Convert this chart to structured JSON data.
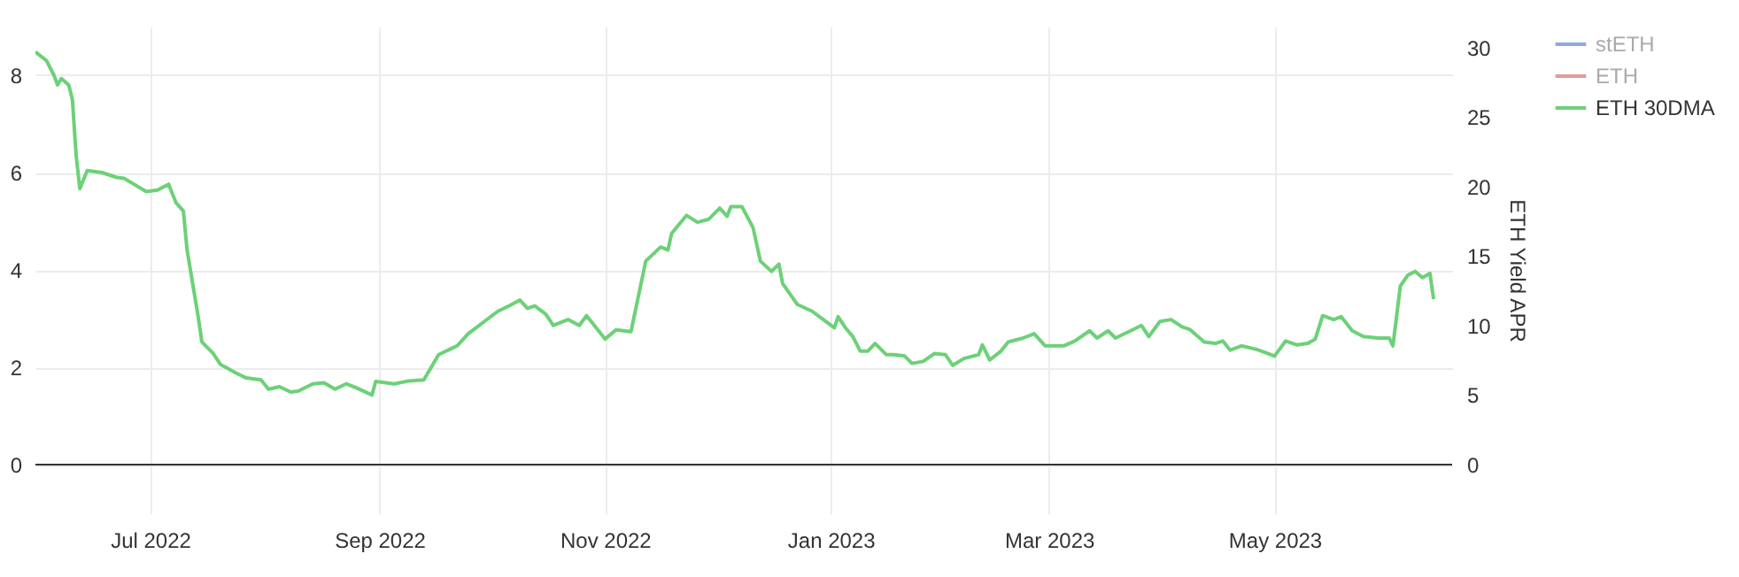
{
  "chart_data": {
    "type": "line",
    "xlim": [
      "2022-05-31",
      "2023-06-18"
    ],
    "xticks": [
      {
        "value": "2022-07-01",
        "label": "Jul 2022"
      },
      {
        "value": "2022-09-01",
        "label": "Sep 2022"
      },
      {
        "value": "2022-11-01",
        "label": "Nov 2022"
      },
      {
        "value": "2023-01-01",
        "label": "Jan 2023"
      },
      {
        "value": "2023-03-01",
        "label": "Mar 2023"
      },
      {
        "value": "2023-05-01",
        "label": "May 2023"
      }
    ],
    "ylim": [
      -1,
      9
    ],
    "yticks": [
      0,
      2,
      4,
      6,
      8
    ],
    "y2lim": [
      -3.5,
      31.5
    ],
    "y2ticks": [
      0,
      5,
      10,
      15,
      20,
      25,
      30
    ],
    "y2label": "ETH Yield APR",
    "grid": true,
    "legend": "top right",
    "marker": "none",
    "line_style": "solid",
    "ref_lines": [
      {
        "axis": "y",
        "value": 0,
        "color": "#333333"
      }
    ],
    "series": [
      {
        "name": "stETH",
        "color": "#8fa8e0",
        "axis": "y2"
      },
      {
        "name": "ETH",
        "color": "#e09a9a",
        "axis": "y2"
      },
      {
        "name": "ETH 30DMA",
        "color": "#6cd178",
        "axis": "y",
        "x": [
          "2022-05-31",
          "2022-06-03",
          "2022-06-05",
          "2022-06-06",
          "2022-06-07",
          "2022-06-09",
          "2022-06-10",
          "2022-06-11",
          "2022-06-12",
          "2022-06-14",
          "2022-06-18",
          "2022-06-22",
          "2022-06-24",
          "2022-06-30",
          "2022-07-03",
          "2022-07-06",
          "2022-07-08",
          "2022-07-10",
          "2022-07-11",
          "2022-07-14",
          "2022-07-15",
          "2022-07-18",
          "2022-07-20",
          "2022-07-24",
          "2022-07-27",
          "2022-07-31",
          "2022-08-02",
          "2022-08-05",
          "2022-08-08",
          "2022-08-10",
          "2022-08-14",
          "2022-08-17",
          "2022-08-20",
          "2022-08-23",
          "2022-08-26",
          "2022-08-30",
          "2022-08-31",
          "2022-09-05",
          "2022-09-09",
          "2022-09-13",
          "2022-09-17",
          "2022-09-22",
          "2022-09-25",
          "2022-09-28",
          "2022-10-03",
          "2022-10-06",
          "2022-10-09",
          "2022-10-11",
          "2022-10-13",
          "2022-10-16",
          "2022-10-18",
          "2022-10-22",
          "2022-10-25",
          "2022-10-27",
          "2022-11-01",
          "2022-11-04",
          "2022-11-08",
          "2022-11-12",
          "2022-11-16",
          "2022-11-18",
          "2022-11-19",
          "2022-11-23",
          "2022-11-26",
          "2022-11-29",
          "2022-12-02",
          "2022-12-04",
          "2022-12-05",
          "2022-12-08",
          "2022-12-11",
          "2022-12-13",
          "2022-12-16",
          "2022-12-18",
          "2022-12-19",
          "2022-12-23",
          "2022-12-27",
          "2022-12-30",
          "2023-01-02",
          "2023-01-03",
          "2023-01-05",
          "2023-01-07",
          "2023-01-09",
          "2023-01-11",
          "2023-01-13",
          "2023-01-16",
          "2023-01-18",
          "2023-01-21",
          "2023-01-23",
          "2023-01-26",
          "2023-01-29",
          "2023-02-01",
          "2023-02-03",
          "2023-02-06",
          "2023-02-10",
          "2023-02-11",
          "2023-02-13",
          "2023-02-16",
          "2023-02-18",
          "2023-02-22",
          "2023-02-25",
          "2023-02-28",
          "2023-03-05",
          "2023-03-08",
          "2023-03-12",
          "2023-03-14",
          "2023-03-17",
          "2023-03-19",
          "2023-03-22",
          "2023-03-26",
          "2023-03-28",
          "2023-03-31",
          "2023-04-03",
          "2023-04-06",
          "2023-04-08",
          "2023-04-12",
          "2023-04-15",
          "2023-04-17",
          "2023-04-19",
          "2023-04-22",
          "2023-04-26",
          "2023-04-29",
          "2023-05-01",
          "2023-05-04",
          "2023-05-07",
          "2023-05-10",
          "2023-05-12",
          "2023-05-14",
          "2023-05-17",
          "2023-05-19",
          "2023-05-22",
          "2023-05-25",
          "2023-05-29",
          "2023-06-01",
          "2023-06-02",
          "2023-06-04",
          "2023-06-06",
          "2023-06-08",
          "2023-06-10",
          "2023-06-12",
          "2023-06-13"
        ],
        "values": [
          8.48,
          8.3,
          8.0,
          7.8,
          7.93,
          7.8,
          7.5,
          6.36,
          5.67,
          6.04,
          6.0,
          5.9,
          5.88,
          5.61,
          5.64,
          5.76,
          5.38,
          5.21,
          4.41,
          3.04,
          2.52,
          2.29,
          2.06,
          1.89,
          1.78,
          1.74,
          1.55,
          1.6,
          1.49,
          1.51,
          1.66,
          1.68,
          1.55,
          1.66,
          1.57,
          1.43,
          1.71,
          1.66,
          1.72,
          1.74,
          2.26,
          2.44,
          2.69,
          2.86,
          3.15,
          3.26,
          3.38,
          3.21,
          3.26,
          3.09,
          2.86,
          2.98,
          2.86,
          3.06,
          2.58,
          2.77,
          2.73,
          4.18,
          4.47,
          4.41,
          4.75,
          5.12,
          4.98,
          5.04,
          5.27,
          5.1,
          5.3,
          5.3,
          4.87,
          4.18,
          3.97,
          4.12,
          3.72,
          3.29,
          3.15,
          2.98,
          2.81,
          3.04,
          2.81,
          2.63,
          2.33,
          2.33,
          2.49,
          2.26,
          2.26,
          2.23,
          2.08,
          2.12,
          2.28,
          2.26,
          2.04,
          2.18,
          2.26,
          2.46,
          2.15,
          2.33,
          2.52,
          2.6,
          2.69,
          2.44,
          2.44,
          2.54,
          2.75,
          2.6,
          2.75,
          2.6,
          2.71,
          2.86,
          2.63,
          2.94,
          2.98,
          2.83,
          2.78,
          2.52,
          2.49,
          2.54,
          2.35,
          2.44,
          2.37,
          2.29,
          2.23,
          2.54,
          2.46,
          2.49,
          2.58,
          3.06,
          2.98,
          3.04,
          2.75,
          2.63,
          2.6,
          2.6,
          2.44,
          3.67,
          3.89,
          3.97,
          3.84,
          3.93,
          3.4
        ]
      }
    ]
  }
}
